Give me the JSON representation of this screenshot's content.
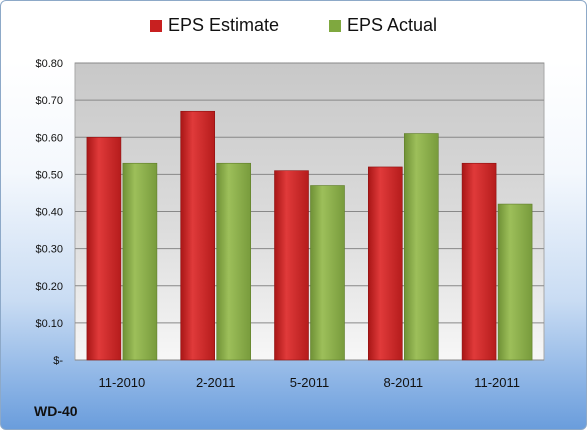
{
  "chart_data": {
    "type": "bar",
    "categories": [
      "11-2010",
      "2-2011",
      "5-2011",
      "8-2011",
      "11-2011"
    ],
    "series": [
      {
        "name": "EPS Estimate",
        "values": [
          0.6,
          0.67,
          0.51,
          0.52,
          0.53
        ],
        "color": "#d42a2a"
      },
      {
        "name": "EPS Actual",
        "values": [
          0.53,
          0.53,
          0.47,
          0.61,
          0.42
        ],
        "color": "#8db04b"
      }
    ],
    "ylim": [
      0,
      0.8
    ],
    "yticks": [
      {
        "value": 0.0,
        "label": "$-"
      },
      {
        "value": 0.1,
        "label": "$0.10"
      },
      {
        "value": 0.2,
        "label": "$0.20"
      },
      {
        "value": 0.3,
        "label": "$0.30"
      },
      {
        "value": 0.4,
        "label": "$0.40"
      },
      {
        "value": 0.5,
        "label": "$0.50"
      },
      {
        "value": 0.6,
        "label": "$0.60"
      },
      {
        "value": 0.7,
        "label": "$0.70"
      },
      {
        "value": 0.8,
        "label": "$0.80"
      }
    ],
    "grid": true,
    "legend_position": "top"
  },
  "footer_label": "WD-40"
}
